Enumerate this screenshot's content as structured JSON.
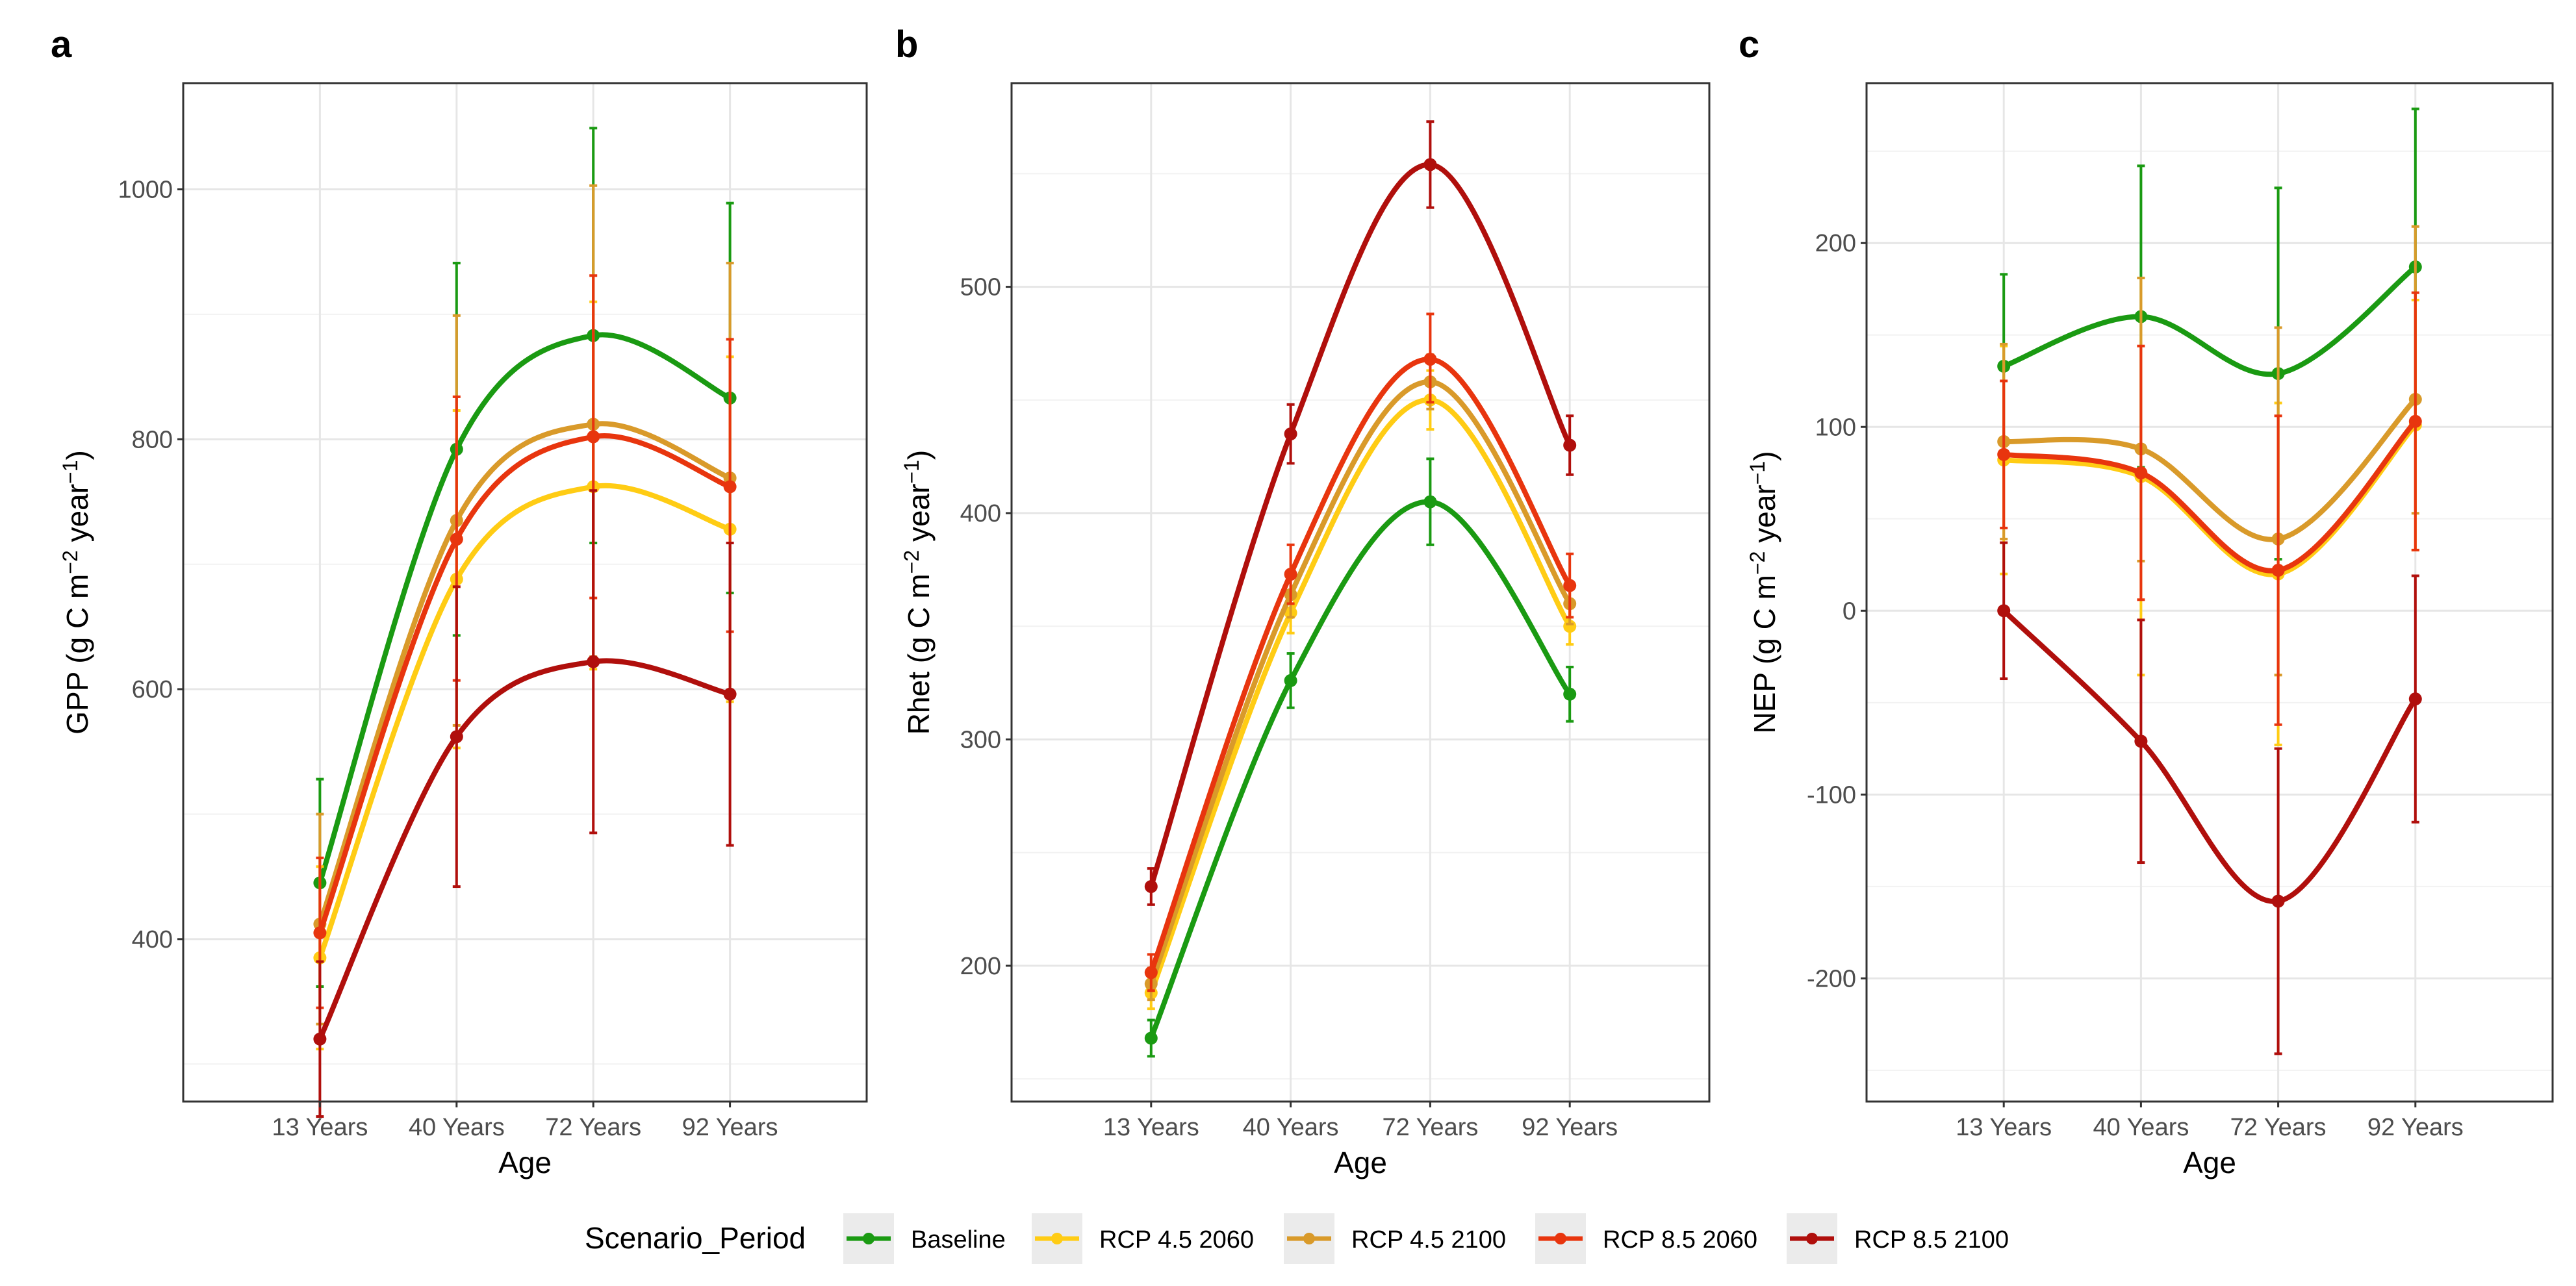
{
  "figure": {
    "legend": {
      "title": "Scenario_Period",
      "items": [
        "Baseline",
        "RCP 4.5 2060",
        "RCP 4.5 2100",
        "RCP 8.5 2060",
        "RCP 8.5 2100"
      ]
    }
  },
  "colors": {
    "Baseline": "#1a9a12",
    "RCP 4.5 2060": "#ffcc14",
    "RCP 4.5 2100": "#d99a2a",
    "RCP 8.5 2060": "#e8350e",
    "RCP 8.5 2100": "#b00f0c"
  },
  "chart_data": [
    {
      "panel": "a",
      "type": "line",
      "xlabel": "Age",
      "ylabel": "GPP (g C m−2 year−1)",
      "ylabel_parts": {
        "base": "GPP (g C m",
        "exp1": "−2",
        "mid": " year",
        "exp2": "−1",
        "end": ")"
      },
      "categories": [
        "13 Years",
        "40 Years",
        "72 Years",
        "92 Years"
      ],
      "ylim": [
        270,
        1085
      ],
      "yticks": [
        400,
        600,
        800,
        1000
      ],
      "grid": true,
      "series": [
        {
          "name": "Baseline",
          "values": [
            445,
            792,
            883,
            833
          ],
          "lower": [
            362,
            643,
            717,
            677
          ],
          "upper": [
            528,
            941,
            1049,
            989
          ]
        },
        {
          "name": "RCP 4.5 2060",
          "values": [
            385,
            688,
            762,
            728
          ],
          "lower": [
            312,
            553,
            616,
            590
          ],
          "upper": [
            458,
            823,
            910,
            866
          ]
        },
        {
          "name": "RCP 4.5 2100",
          "values": [
            412,
            735,
            812,
            769
          ],
          "lower": [
            332,
            571,
            626,
            598
          ],
          "upper": [
            500,
            899,
            1003,
            941
          ]
        },
        {
          "name": "RCP 8.5 2060",
          "values": [
            405,
            720,
            802,
            762
          ],
          "lower": [
            345,
            607,
            673,
            646
          ],
          "upper": [
            465,
            834,
            931,
            880
          ]
        },
        {
          "name": "RCP 8.5 2100",
          "values": [
            320,
            562,
            622,
            596
          ],
          "lower": [
            258,
            442,
            485,
            475
          ],
          "upper": [
            382,
            682,
            759,
            717
          ]
        }
      ]
    },
    {
      "panel": "b",
      "type": "line",
      "xlabel": "Age",
      "ylabel": "Rhet (g C m−2 year−1)",
      "ylabel_parts": {
        "base": "Rhet (g C m",
        "exp1": "−2",
        "mid": " year",
        "exp2": "−1",
        "end": ")"
      },
      "categories": [
        "13 Years",
        "40 Years",
        "72 Years",
        "92 Years"
      ],
      "ylim": [
        140,
        590
      ],
      "yticks": [
        200,
        300,
        400,
        500
      ],
      "grid": true,
      "series": [
        {
          "name": "Baseline",
          "values": [
            168,
            326,
            405,
            320
          ],
          "lower": [
            160,
            314,
            386,
            308
          ],
          "upper": [
            176,
            338,
            424,
            332
          ]
        },
        {
          "name": "RCP 4.5 2060",
          "values": [
            188,
            356,
            450,
            350
          ],
          "lower": [
            181,
            347,
            437,
            342
          ],
          "upper": [
            195,
            365,
            463,
            358
          ]
        },
        {
          "name": "RCP 4.5 2100",
          "values": [
            192,
            364,
            458,
            360
          ],
          "lower": [
            185,
            354,
            446,
            351
          ],
          "upper": [
            199,
            374,
            470,
            369
          ]
        },
        {
          "name": "RCP 8.5 2060",
          "values": [
            197,
            373,
            468,
            368
          ],
          "lower": [
            189,
            360,
            449,
            354
          ],
          "upper": [
            205,
            386,
            488,
            382
          ]
        },
        {
          "name": "RCP 8.5 2100",
          "values": [
            235,
            435,
            554,
            430
          ],
          "lower": [
            227,
            422,
            535,
            417
          ],
          "upper": [
            243,
            448,
            573,
            443
          ]
        }
      ]
    },
    {
      "panel": "c",
      "type": "line",
      "xlabel": "Age",
      "ylabel": "NEP (g C m−2 year−1)",
      "ylabel_parts": {
        "base": "NEP (g C m",
        "exp1": "−2",
        "mid": " year",
        "exp2": "−1",
        "end": ")"
      },
      "categories": [
        "13 Years",
        "40 Years",
        "72 Years",
        "92 Years"
      ],
      "ylim": [
        -267,
        287
      ],
      "yticks": [
        -200,
        -100,
        0,
        100,
        200
      ],
      "grid": true,
      "series": [
        {
          "name": "Baseline",
          "values": [
            133,
            160,
            129,
            187
          ],
          "lower": [
            83,
            78,
            28,
            101
          ],
          "upper": [
            183,
            242,
            230,
            273
          ]
        },
        {
          "name": "RCP 4.5 2060",
          "values": [
            82,
            73,
            20,
            101
          ],
          "lower": [
            20,
            -35,
            -73,
            33
          ],
          "upper": [
            144,
            181,
            113,
            169
          ]
        },
        {
          "name": "RCP 4.5 2100",
          "values": [
            92,
            88,
            39,
            115
          ],
          "lower": [
            39,
            27,
            -35,
            53
          ],
          "upper": [
            145,
            181,
            154,
            209
          ]
        },
        {
          "name": "RCP 8.5 2060",
          "values": [
            85,
            75,
            22,
            103
          ],
          "lower": [
            45,
            6,
            -62,
            33
          ],
          "upper": [
            125,
            144,
            106,
            173
          ]
        },
        {
          "name": "RCP 8.5 2100",
          "values": [
            0,
            -71,
            -158,
            -48
          ],
          "lower": [
            -37,
            -137,
            -241,
            -115
          ],
          "upper": [
            37,
            -5,
            -75,
            19
          ]
        }
      ]
    }
  ]
}
